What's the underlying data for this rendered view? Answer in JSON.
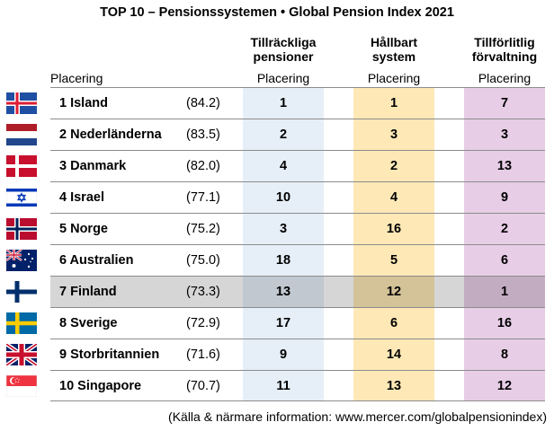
{
  "title": "TOP 10 – Pensionssystemen  •  Global Pension Index 2021",
  "placering_label": "Placering",
  "columns": [
    {
      "header_line1": "Tillräckliga",
      "header_line2": "pensioner",
      "sub": "Placering",
      "color": "#e6eff8"
    },
    {
      "header_line1": "Hållbart",
      "header_line2": "system",
      "sub": "Placering",
      "color": "#fde8b6"
    },
    {
      "header_line1": "Tillförlitlig",
      "header_line2": "förvaltning",
      "sub": "Placering",
      "color": "#e7cde6"
    }
  ],
  "rows": [
    {
      "name": "1 Island",
      "score": "(84.2)",
      "r1": "1",
      "r2": "1",
      "r3": "7",
      "flag": "iceland-flag-icon"
    },
    {
      "name": "2 Nederländerna",
      "score": "(83.5)",
      "r1": "2",
      "r2": "3",
      "r3": "3",
      "flag": "netherlands-flag-icon"
    },
    {
      "name": "3 Danmark",
      "score": "(82.0)",
      "r1": "4",
      "r2": "2",
      "r3": "13",
      "flag": "denmark-flag-icon"
    },
    {
      "name": "4 Israel",
      "score": "(77.1)",
      "r1": "10",
      "r2": "4",
      "r3": "9",
      "flag": "israel-flag-icon"
    },
    {
      "name": "5 Norge",
      "score": "(75.2)",
      "r1": "3",
      "r2": "16",
      "r3": "2",
      "flag": "norway-flag-icon"
    },
    {
      "name": "6 Australien",
      "score": "(75.0)",
      "r1": "18",
      "r2": "5",
      "r3": "6",
      "flag": "australia-flag-icon"
    },
    {
      "name": "7 Finland",
      "score": "(73.3)",
      "r1": "13",
      "r2": "12",
      "r3": "1",
      "flag": "finland-flag-icon",
      "highlighted": true
    },
    {
      "name": "8 Sverige",
      "score": "(72.9)",
      "r1": "17",
      "r2": "6",
      "r3": "16",
      "flag": "sweden-flag-icon"
    },
    {
      "name": "9 Storbritannien",
      "score": "(71.6)",
      "r1": "9",
      "r2": "14",
      "r3": "8",
      "flag": "uk-flag-icon"
    },
    {
      "name": "10 Singapore",
      "score": "(70.7)",
      "r1": "11",
      "r2": "13",
      "r3": "12",
      "flag": "singapore-flag-icon"
    }
  ],
  "footer": "(Källa & närmare information: www.mercer.com/globalpensionindex)"
}
